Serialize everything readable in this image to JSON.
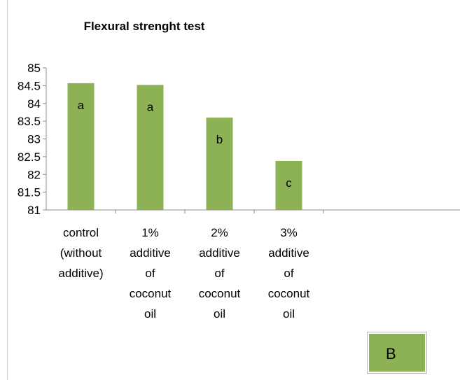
{
  "chart_data": {
    "type": "bar",
    "title": "Flexural  strenght test",
    "categories": [
      [
        "control",
        "(without",
        "additive)"
      ],
      [
        "1%",
        "additive",
        "of",
        "coconut",
        "oil"
      ],
      [
        "2%",
        "additive",
        "of",
        "coconut",
        "oil"
      ],
      [
        "3%",
        "additive",
        "of",
        "coconut",
        "oil"
      ]
    ],
    "values": [
      84.57,
      84.52,
      83.6,
      82.38
    ],
    "data_labels": [
      "a",
      "a",
      "b",
      "c"
    ],
    "ylim": [
      81,
      85
    ],
    "yticks": [
      "81",
      "81.5",
      "82",
      "82.5",
      "83",
      "83.5",
      "84",
      "84.5",
      "85"
    ],
    "xlabel": "",
    "ylabel": "",
    "grid": false,
    "bar_color": "#8db255",
    "legend": {
      "label": "B",
      "placement": "bottom-right"
    }
  }
}
